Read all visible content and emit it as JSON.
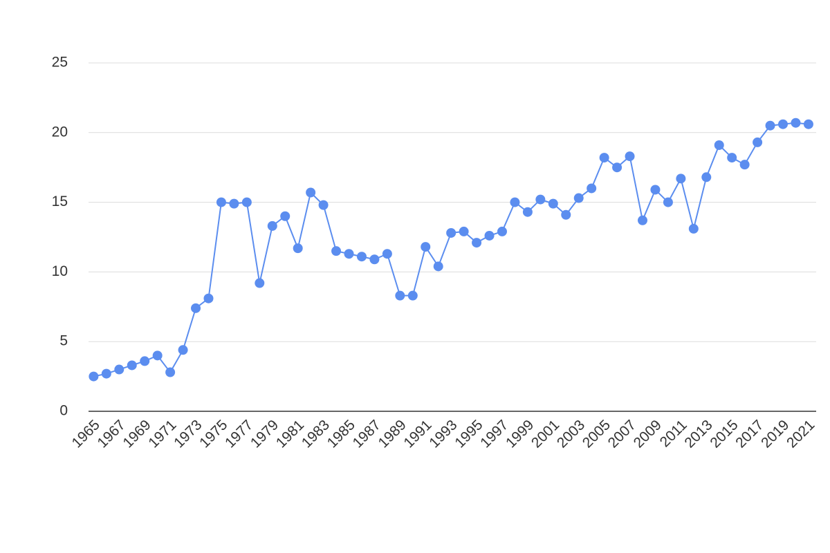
{
  "chart_data": {
    "type": "line",
    "x": [
      1965,
      1966,
      1967,
      1968,
      1969,
      1970,
      1971,
      1972,
      1973,
      1974,
      1975,
      1976,
      1977,
      1978,
      1979,
      1980,
      1981,
      1982,
      1983,
      1984,
      1985,
      1986,
      1987,
      1988,
      1989,
      1990,
      1991,
      1992,
      1993,
      1994,
      1995,
      1996,
      1997,
      1998,
      1999,
      2000,
      2001,
      2002,
      2003,
      2004,
      2005,
      2006,
      2007,
      2008,
      2009,
      2010,
      2011,
      2012,
      2013,
      2014,
      2015,
      2016,
      2017,
      2018,
      2019,
      2020,
      2021
    ],
    "series": [
      {
        "color": "#5b8def",
        "values": [
          2.5,
          2.7,
          3.0,
          3.3,
          3.6,
          4.0,
          2.8,
          4.4,
          7.4,
          8.1,
          15.0,
          14.9,
          15.0,
          9.2,
          13.3,
          14.0,
          11.7,
          15.7,
          14.8,
          11.5,
          11.3,
          11.1,
          10.9,
          11.3,
          8.3,
          8.3,
          11.8,
          10.4,
          12.8,
          12.9,
          12.1,
          12.6,
          12.9,
          15.0,
          14.3,
          15.2,
          14.9,
          14.1,
          15.3,
          16.0,
          18.2,
          17.5,
          18.3,
          13.7,
          15.9,
          15.0,
          16.7,
          13.1,
          16.8,
          19.1,
          18.2,
          17.7,
          19.3,
          20.5,
          20.6,
          20.7,
          20.6
        ]
      }
    ],
    "xlim": [
      1964.6,
      2021.6
    ],
    "xticks": [
      1965,
      1967,
      1969,
      1971,
      1973,
      1975,
      1977,
      1979,
      1981,
      1983,
      1985,
      1987,
      1989,
      1991,
      1993,
      1995,
      1997,
      1999,
      2001,
      2003,
      2005,
      2007,
      2009,
      2011,
      2013,
      2015,
      2017,
      2019,
      2021
    ],
    "ylim": [
      0,
      25
    ],
    "yticks": [
      0,
      5,
      10,
      15,
      20,
      25
    ],
    "grid": true
  }
}
